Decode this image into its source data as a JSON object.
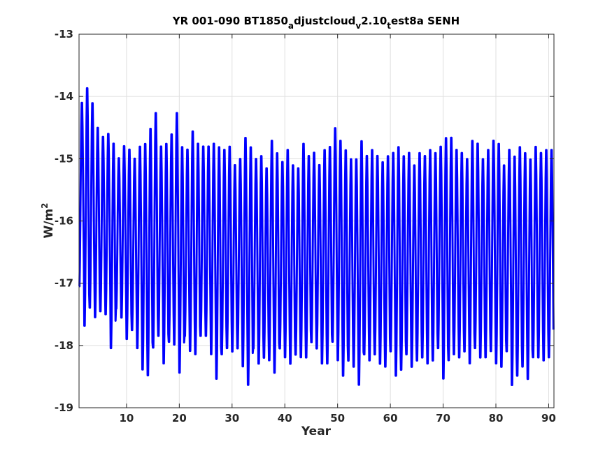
{
  "chart_data": {
    "type": "line",
    "title": {
      "p1": "YR 001-090 BT1850",
      "s1": "a",
      "p2": "djustcloud",
      "s2": "v",
      "p3": "2.10",
      "s3": "t",
      "p4": "est8a SENH"
    },
    "xlabel": "Year",
    "ylabel": {
      "base": "W/m",
      "sup": "2"
    },
    "xlim": [
      1,
      91
    ],
    "ylim": [
      -19,
      -13
    ],
    "xticks": [
      10,
      20,
      30,
      40,
      50,
      60,
      70,
      80,
      90
    ],
    "yticks": [
      -19,
      -18,
      -17,
      -16,
      -15,
      -14,
      -13
    ],
    "xtick_labels": [
      "10",
      "20",
      "30",
      "40",
      "50",
      "60",
      "70",
      "80",
      "90"
    ],
    "ytick_labels": [
      "-19",
      "-18",
      "-17",
      "-16",
      "-15",
      "-14",
      "-13"
    ],
    "grid": true,
    "line_color": "#0000ff",
    "series": [
      {
        "frequency": "monthly",
        "start_year": 1,
        "annual_maxima": [
          -14.05,
          -13.8,
          -14.05,
          -14.45,
          -14.6,
          -14.55,
          -14.7,
          -14.95,
          -14.75,
          -14.8,
          -14.95,
          -14.75,
          -14.7,
          -14.45,
          -14.2,
          -14.75,
          -14.7,
          -14.55,
          -14.2,
          -14.75,
          -14.8,
          -14.5,
          -14.7,
          -14.75,
          -14.75,
          -14.7,
          -14.75,
          -14.8,
          -14.75,
          -15.05,
          -14.95,
          -14.6,
          -14.75,
          -14.95,
          -14.9,
          -15.1,
          -14.65,
          -14.85,
          -15.0,
          -14.8,
          -15.05,
          -15.1,
          -14.7,
          -14.9,
          -14.85,
          -15.05,
          -14.8,
          -14.75,
          -14.45,
          -14.65,
          -14.8,
          -14.95,
          -14.95,
          -14.65,
          -14.9,
          -14.8,
          -14.9,
          -15.0,
          -14.9,
          -14.85,
          -14.75,
          -14.9,
          -14.85,
          -15.05,
          -14.85,
          -14.9,
          -14.8,
          -14.85,
          -14.75,
          -14.6,
          -14.6,
          -14.8,
          -14.85,
          -14.95,
          -14.65,
          -14.7,
          -14.95,
          -14.8,
          -14.65,
          -14.7,
          -15.05,
          -14.8,
          -14.9,
          -14.75,
          -14.85,
          -14.95,
          -14.75,
          -14.85,
          -14.8,
          -14.8
        ],
        "annual_minima": [
          -17.1,
          -17.75,
          -17.45,
          -17.6,
          -17.5,
          -17.55,
          -18.1,
          -17.45,
          -17.6,
          -17.95,
          -17.8,
          -18.1,
          -18.45,
          -18.55,
          -18.1,
          -17.9,
          -18.35,
          -18.0,
          -18.05,
          -18.5,
          -17.9,
          -18.15,
          -18.2,
          -17.9,
          -17.9,
          -18.2,
          -18.6,
          -18.2,
          -18.1,
          -18.15,
          -18.1,
          -18.4,
          -18.7,
          -18.1,
          -18.35,
          -18.25,
          -18.3,
          -18.5,
          -18.1,
          -18.25,
          -18.35,
          -18.2,
          -18.25,
          -18.25,
          -18.0,
          -18.1,
          -18.35,
          -18.35,
          -18.0,
          -18.3,
          -18.55,
          -18.3,
          -18.4,
          -18.7,
          -18.2,
          -18.3,
          -18.2,
          -18.35,
          -18.4,
          -18.15,
          -18.55,
          -18.45,
          -18.2,
          -18.4,
          -18.3,
          -18.25,
          -18.35,
          -18.3,
          -18.1,
          -18.6,
          -18.3,
          -18.2,
          -18.25,
          -18.15,
          -18.35,
          -18.1,
          -18.25,
          -18.25,
          -18.15,
          -18.35,
          -18.4,
          -18.15,
          -18.7,
          -18.55,
          -18.4,
          -18.6,
          -18.25,
          -18.25,
          -18.3,
          -18.25
        ]
      }
    ]
  }
}
